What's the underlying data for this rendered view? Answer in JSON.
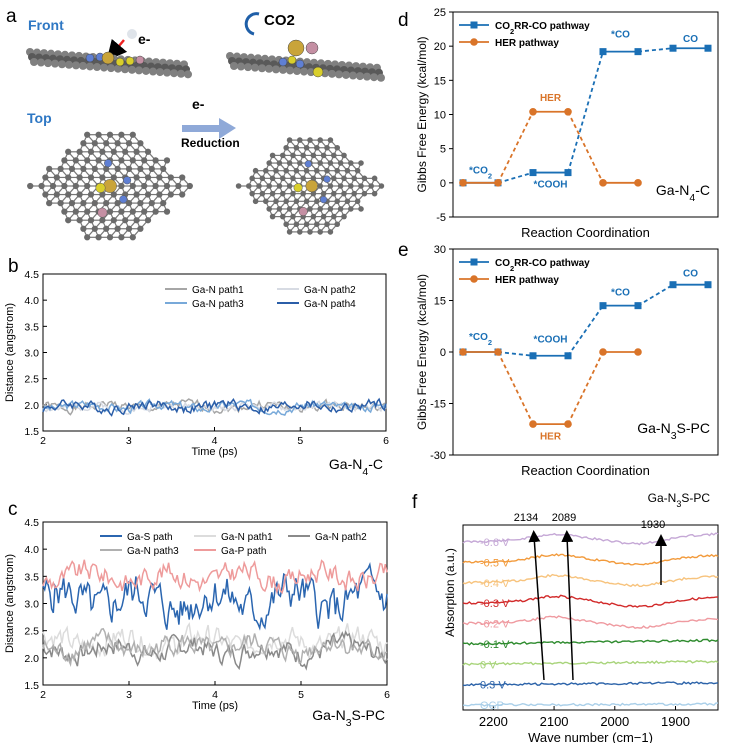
{
  "panels": {
    "a": "a",
    "b": "b",
    "c": "c",
    "d": "d",
    "e": "e",
    "f": "f"
  },
  "panel_a": {
    "front_label": "Front",
    "top_label": "Top",
    "electron": "e-",
    "co2": "CO2",
    "arrow_electron": "e-",
    "reduction": "Reduction"
  },
  "colors": {
    "co2rr": "#1a6fb5",
    "her": "#d97429",
    "ga": "#c9a43a",
    "n": "#5f7fd3",
    "s": "#d9cf2c",
    "p": "#c48fa3",
    "c": "#6b6b6b",
    "lbl_blue": "#2f78c4"
  },
  "chart_data": [
    {
      "id": "d",
      "type": "line",
      "title": "Ga-N4-C",
      "ylabel": "Gibbs Free Energy (kcal/mol)",
      "xlabel": "Reaction Coordination",
      "ylim": [
        -5,
        25
      ],
      "yticks": [
        -5,
        0,
        5,
        10,
        15,
        20,
        25
      ],
      "series": [
        {
          "name": "CO2RR-CO pathway",
          "color": "#1a6fb5",
          "marker": "square",
          "levels": [
            [
              0,
              1,
              0
            ],
            [
              2,
              3,
              1.5
            ],
            [
              4,
              5,
              19.2
            ],
            [
              6,
              7,
              19.7
            ]
          ]
        },
        {
          "name": "HER pathway",
          "color": "#d97429",
          "marker": "circle",
          "levels": [
            [
              0,
              1,
              0
            ],
            [
              2,
              3,
              10.4
            ],
            [
              4,
              5,
              0
            ]
          ]
        }
      ],
      "annotations": [
        {
          "text": "*CO2",
          "x": 0.5,
          "y": 1.4,
          "color": "#1a6fb5"
        },
        {
          "text": "HER",
          "x": 2.5,
          "y": 12.0,
          "color": "#d97429"
        },
        {
          "text": "*COOH",
          "x": 2.5,
          "y": -0.7,
          "color": "#1a6fb5"
        },
        {
          "text": "*CO",
          "x": 4.5,
          "y": 21.3,
          "color": "#1a6fb5"
        },
        {
          "text": "CO",
          "x": 6.5,
          "y": 20.6,
          "color": "#1a6fb5"
        }
      ]
    },
    {
      "id": "e",
      "type": "line",
      "title": "Ga-N3S-PC",
      "ylabel": "Gibbs Free Energy (kcal/mol)",
      "xlabel": "Reaction Coordination",
      "ylim": [
        -30,
        30
      ],
      "yticks": [
        -30,
        -15,
        0,
        15,
        30
      ],
      "series": [
        {
          "name": "CO2RR-CO pathway",
          "color": "#1a6fb5",
          "marker": "square",
          "levels": [
            [
              0,
              1,
              0
            ],
            [
              2,
              3,
              -1.1
            ],
            [
              4,
              5,
              13.5
            ],
            [
              6,
              7,
              19.6
            ]
          ]
        },
        {
          "name": "HER pathway",
          "color": "#d97429",
          "marker": "circle",
          "levels": [
            [
              0,
              1,
              0
            ],
            [
              2,
              3,
              -21
            ],
            [
              4,
              5,
              0
            ]
          ]
        }
      ],
      "annotations": [
        {
          "text": "*CO2",
          "x": 0.5,
          "y": 3.5,
          "color": "#1a6fb5"
        },
        {
          "text": "*COOH",
          "x": 2.5,
          "y": 2.7,
          "color": "#1a6fb5"
        },
        {
          "text": "*CO",
          "x": 4.5,
          "y": 16.5,
          "color": "#1a6fb5"
        },
        {
          "text": "CO",
          "x": 6.5,
          "y": 22.0,
          "color": "#1a6fb5"
        },
        {
          "text": "HER",
          "x": 2.5,
          "y": -25.5,
          "color": "#d97429"
        }
      ]
    },
    {
      "id": "b",
      "type": "line",
      "title": "Ga-N4-C",
      "xlabel": "Time (ps)",
      "ylabel": "Distance (angstrom)",
      "xlim": [
        2,
        6
      ],
      "xticks": [
        2,
        3,
        4,
        5,
        6
      ],
      "ylim": [
        1.5,
        4.5
      ],
      "yticks": [
        1.5,
        2.0,
        2.5,
        3.0,
        3.5,
        4.0,
        4.5
      ],
      "series": [
        {
          "name": "Ga-N path1",
          "color": "#a6a6a6",
          "base": 1.97,
          "amp": 0.07,
          "seed": 1
        },
        {
          "name": "Ga-N path2",
          "color": "#d7dbe3",
          "base": 1.96,
          "amp": 0.06,
          "seed": 2
        },
        {
          "name": "Ga-N path3",
          "color": "#78a9d9",
          "base": 1.97,
          "amp": 0.07,
          "seed": 3
        },
        {
          "name": "Ga-N path4",
          "color": "#2b5ea8",
          "base": 1.97,
          "amp": 0.08,
          "seed": 4
        }
      ]
    },
    {
      "id": "c",
      "type": "line",
      "title": "Ga-N3S-PC",
      "xlabel": "Time (ps)",
      "ylabel": "Distance (angstrom)",
      "xlim": [
        2,
        6
      ],
      "xticks": [
        2,
        3,
        4,
        5,
        6
      ],
      "ylim": [
        1.5,
        4.5
      ],
      "yticks": [
        1.5,
        2.0,
        2.5,
        3.0,
        3.5,
        4.0,
        4.5
      ],
      "series": [
        {
          "name": "Ga-S path",
          "color": "#2b66b0",
          "base": 3.05,
          "amp": 0.32,
          "seed": 5
        },
        {
          "name": "Ga-N path1",
          "color": "#dcdcdc",
          "base": 2.3,
          "amp": 0.18,
          "seed": 6
        },
        {
          "name": "Ga-N path2",
          "color": "#8a8a8a",
          "base": 2.15,
          "amp": 0.16,
          "seed": 7
        },
        {
          "name": "Ga-N path3",
          "color": "#b0b0b0",
          "base": 2.2,
          "amp": 0.16,
          "seed": 8
        },
        {
          "name": "Ga-P path",
          "color": "#ee9b9b",
          "base": 3.5,
          "amp": 0.17,
          "seed": 9
        }
      ]
    },
    {
      "id": "f",
      "type": "line",
      "title": "Ga-N3S-PC",
      "xlabel": "Wave number (cm−1)",
      "ylabel": "Absorption (a.u.)",
      "xlim": [
        2250,
        1830
      ],
      "xticks": [
        2200,
        2100,
        2000,
        1900
      ],
      "series": [
        {
          "name": "-0.6 V",
          "color": "#c5a8d6"
        },
        {
          "name": "-0.5 V",
          "color": "#f29a3b"
        },
        {
          "name": "-0.4 V",
          "color": "#f7c37d"
        },
        {
          "name": "-0.3 V",
          "color": "#d22a2a"
        },
        {
          "name": "-0.2 V",
          "color": "#ef9aa0"
        },
        {
          "name": "-0.1 V",
          "color": "#2e8b2e"
        },
        {
          "name": "0 V",
          "color": "#a8d47a"
        },
        {
          "name": "0.3 V",
          "color": "#2c63a9"
        },
        {
          "name": "OCP",
          "color": "#a9cfe9"
        }
      ],
      "peaks": [
        "2134",
        "2089",
        "1930"
      ]
    }
  ]
}
